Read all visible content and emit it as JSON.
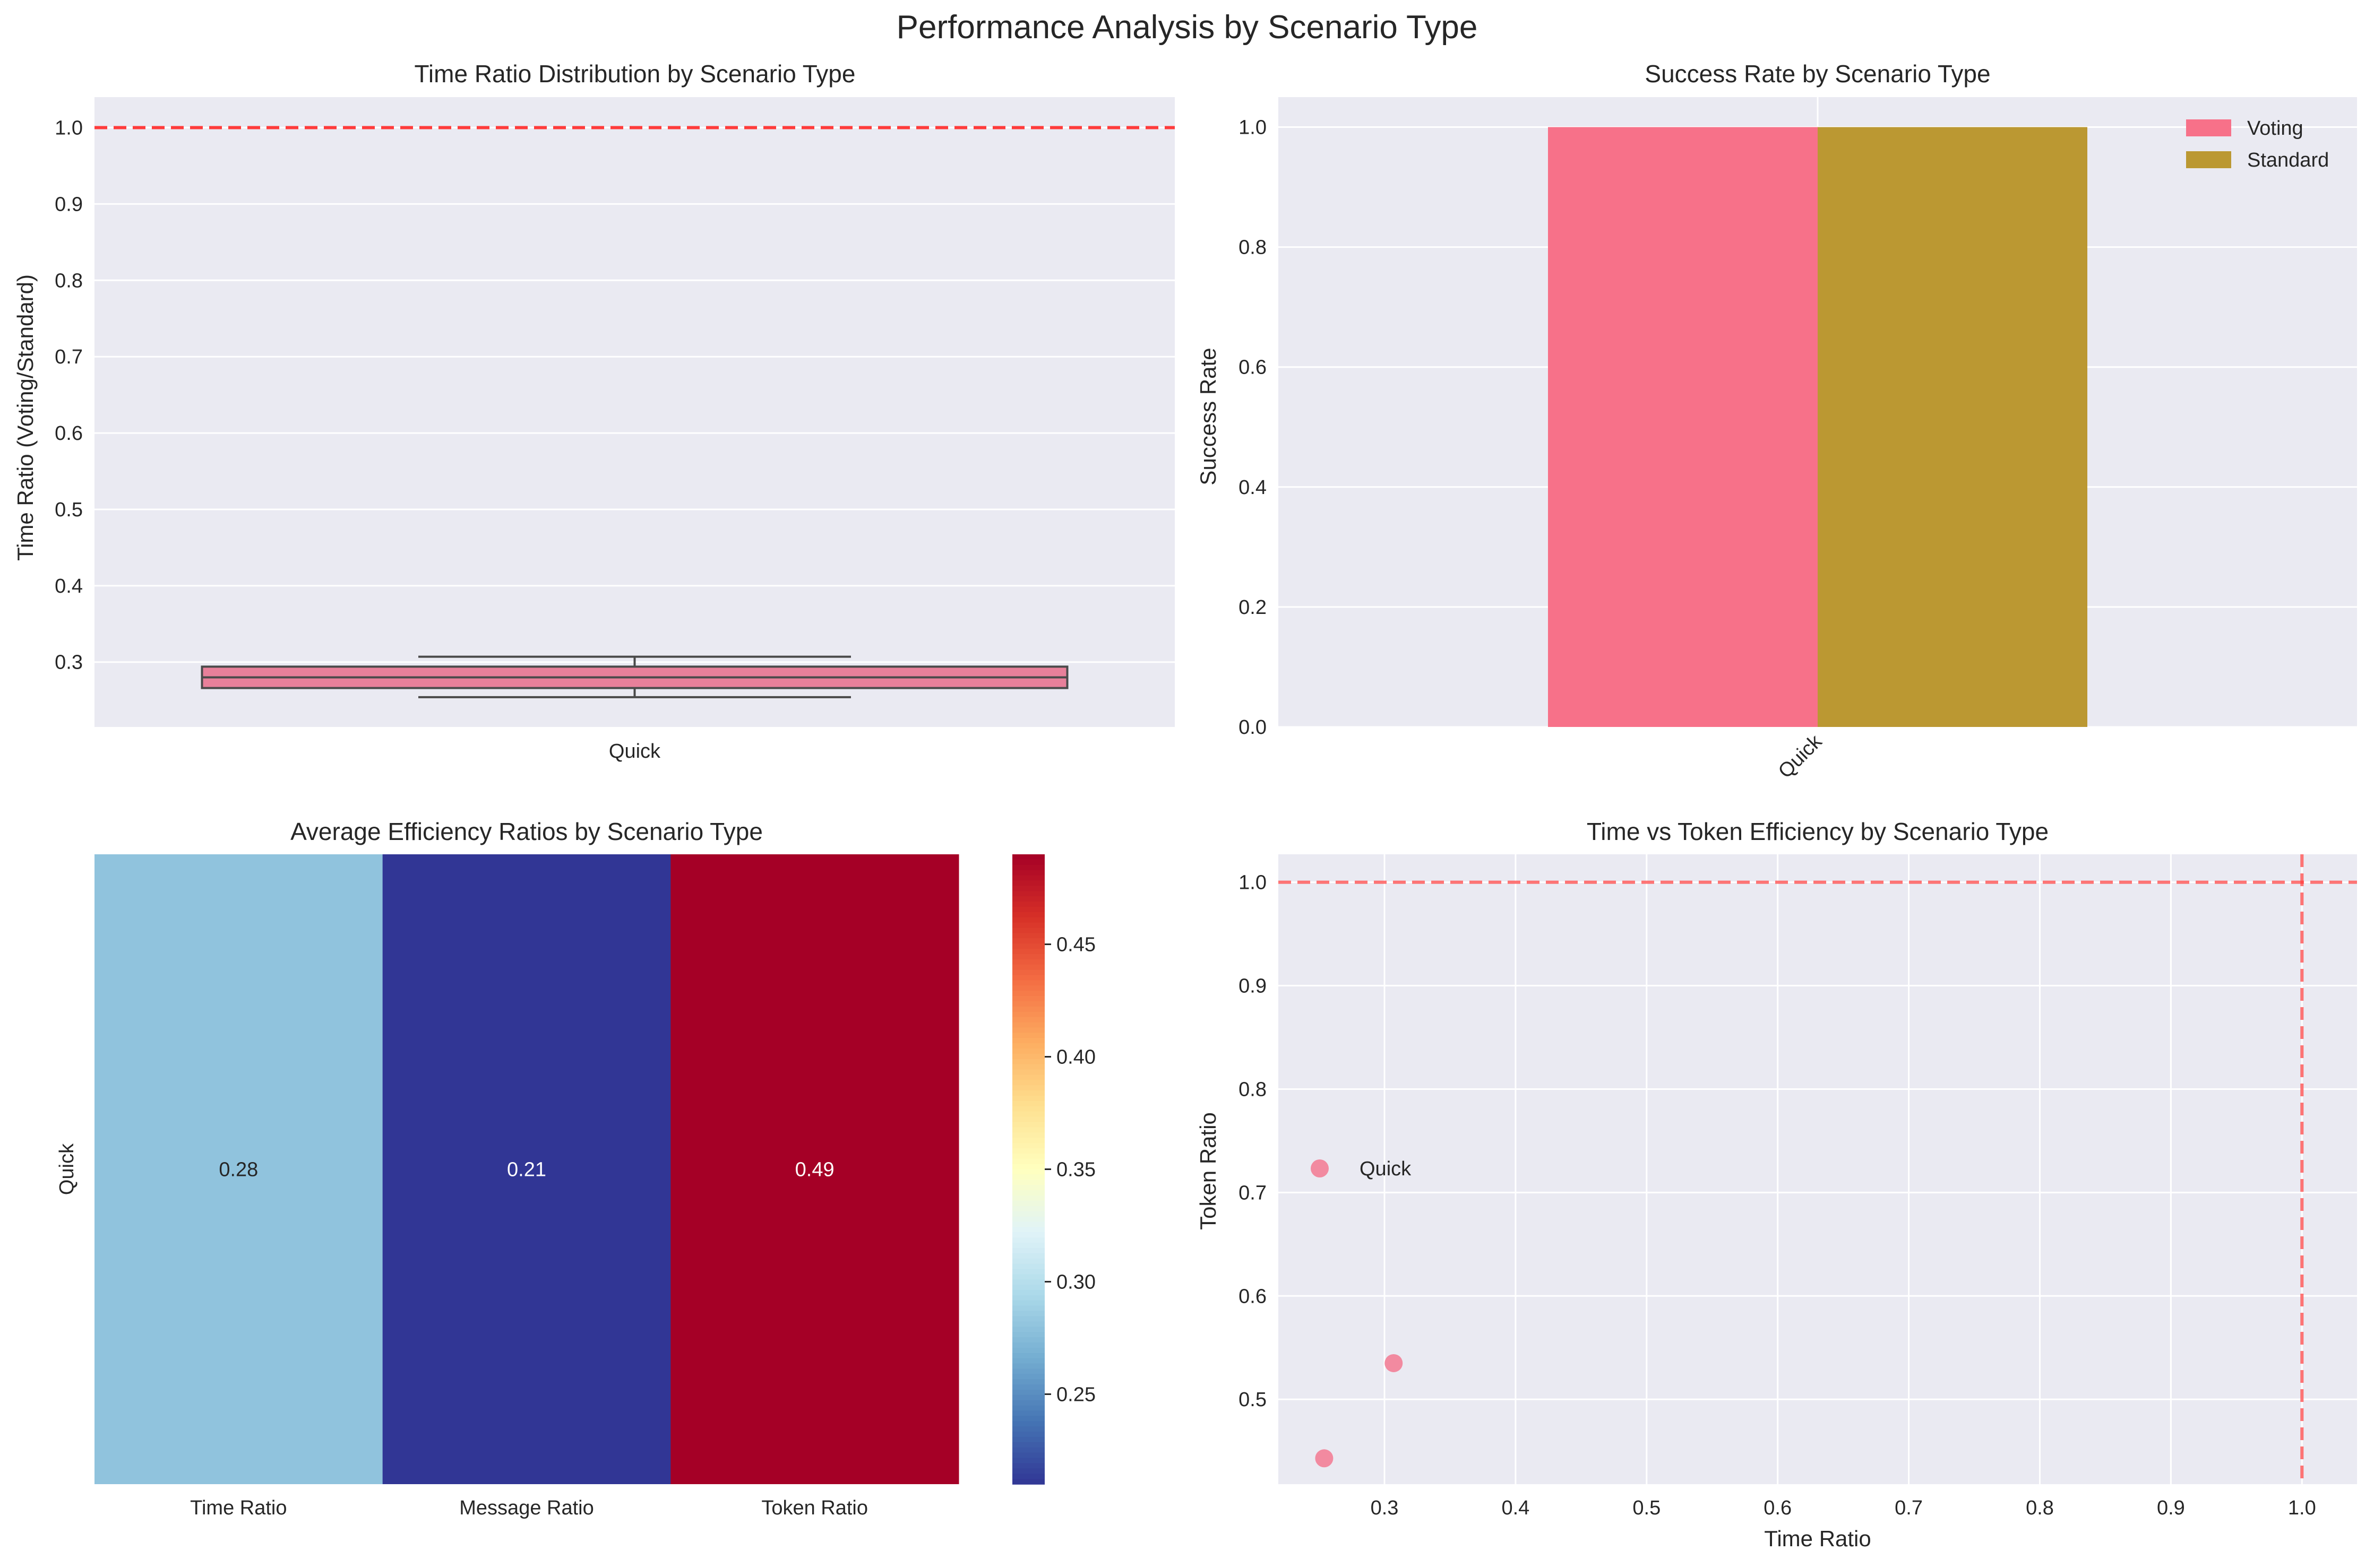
{
  "figure": {
    "title": "Performance Analysis by Scenario Type"
  },
  "colors": {
    "panel_bg": "#eaeaf2",
    "grid": "#ffffff",
    "ref_line": "#ff3b3b",
    "voting": "#f77189",
    "standard": "#bb9832",
    "box_fill": "#e8809a",
    "box_edge": "#4a4a4a",
    "scatter": "#f28aa0"
  },
  "chart_data": [
    {
      "type": "box",
      "title": "Time Ratio Distribution by Scenario Type",
      "xlabel": "",
      "ylabel": "Time Ratio (Voting/Standard)",
      "categories": [
        "Quick"
      ],
      "box": {
        "whisker_low": 0.254,
        "q1": 0.266,
        "median": 0.28,
        "q3": 0.294,
        "whisker_high": 0.307
      },
      "reference_line_y": 1.0,
      "ylim": [
        0.215,
        1.04
      ],
      "yticks": [
        0.3,
        0.4,
        0.5,
        0.6,
        0.7,
        0.8,
        0.9,
        1.0
      ],
      "ytick_labels": [
        "0.3",
        "0.4",
        "0.5",
        "0.6",
        "0.7",
        "0.8",
        "0.9",
        "1.0"
      ],
      "grid": true
    },
    {
      "type": "bar",
      "title": "Success Rate by Scenario Type",
      "xlabel": "",
      "ylabel": "Success Rate",
      "categories": [
        "Quick"
      ],
      "series": [
        {
          "name": "Voting",
          "values": [
            1.0
          ]
        },
        {
          "name": "Standard",
          "values": [
            1.0
          ]
        }
      ],
      "ylim": [
        0,
        1.05
      ],
      "yticks": [
        0.0,
        0.2,
        0.4,
        0.6,
        0.8,
        1.0
      ],
      "ytick_labels": [
        "0.0",
        "0.2",
        "0.4",
        "0.6",
        "0.8",
        "1.0"
      ],
      "legend": "top-right",
      "grid": true
    },
    {
      "type": "heatmap",
      "title": "Average Efficiency Ratios by Scenario Type",
      "rows": [
        "Quick"
      ],
      "columns": [
        "Time Ratio",
        "Message Ratio",
        "Token Ratio"
      ],
      "values": [
        [
          0.28,
          0.21,
          0.49
        ]
      ],
      "value_labels": [
        [
          "0.28",
          "0.21",
          "0.49"
        ]
      ],
      "colormap": "RdYlBu_r",
      "colorbar_range": [
        0.21,
        0.49
      ],
      "colorbar_ticks": [
        0.25,
        0.3,
        0.35,
        0.4,
        0.45
      ],
      "colorbar_tick_labels": [
        "0.25",
        "0.30",
        "0.35",
        "0.40",
        "0.45"
      ]
    },
    {
      "type": "scatter",
      "title": "Time vs Token Efficiency by Scenario Type",
      "xlabel": "Time Ratio",
      "ylabel": "Token Ratio",
      "series": [
        {
          "name": "Quick",
          "points": [
            [
              0.254,
              0.443
            ],
            [
              0.307,
              0.535
            ]
          ]
        }
      ],
      "reference_lines": {
        "x": 1.0,
        "y": 1.0
      },
      "xlim": [
        0.219,
        1.042
      ],
      "ylim": [
        0.418,
        1.027
      ],
      "xticks": [
        0.3,
        0.4,
        0.5,
        0.6,
        0.7,
        0.8,
        0.9,
        1.0
      ],
      "xtick_labels": [
        "0.3",
        "0.4",
        "0.5",
        "0.6",
        "0.7",
        "0.8",
        "0.9",
        "1.0"
      ],
      "yticks": [
        0.5,
        0.6,
        0.7,
        0.8,
        0.9,
        1.0
      ],
      "ytick_labels": [
        "0.5",
        "0.6",
        "0.7",
        "0.8",
        "0.9",
        "1.0"
      ],
      "legend": "center-left",
      "grid": true
    }
  ]
}
